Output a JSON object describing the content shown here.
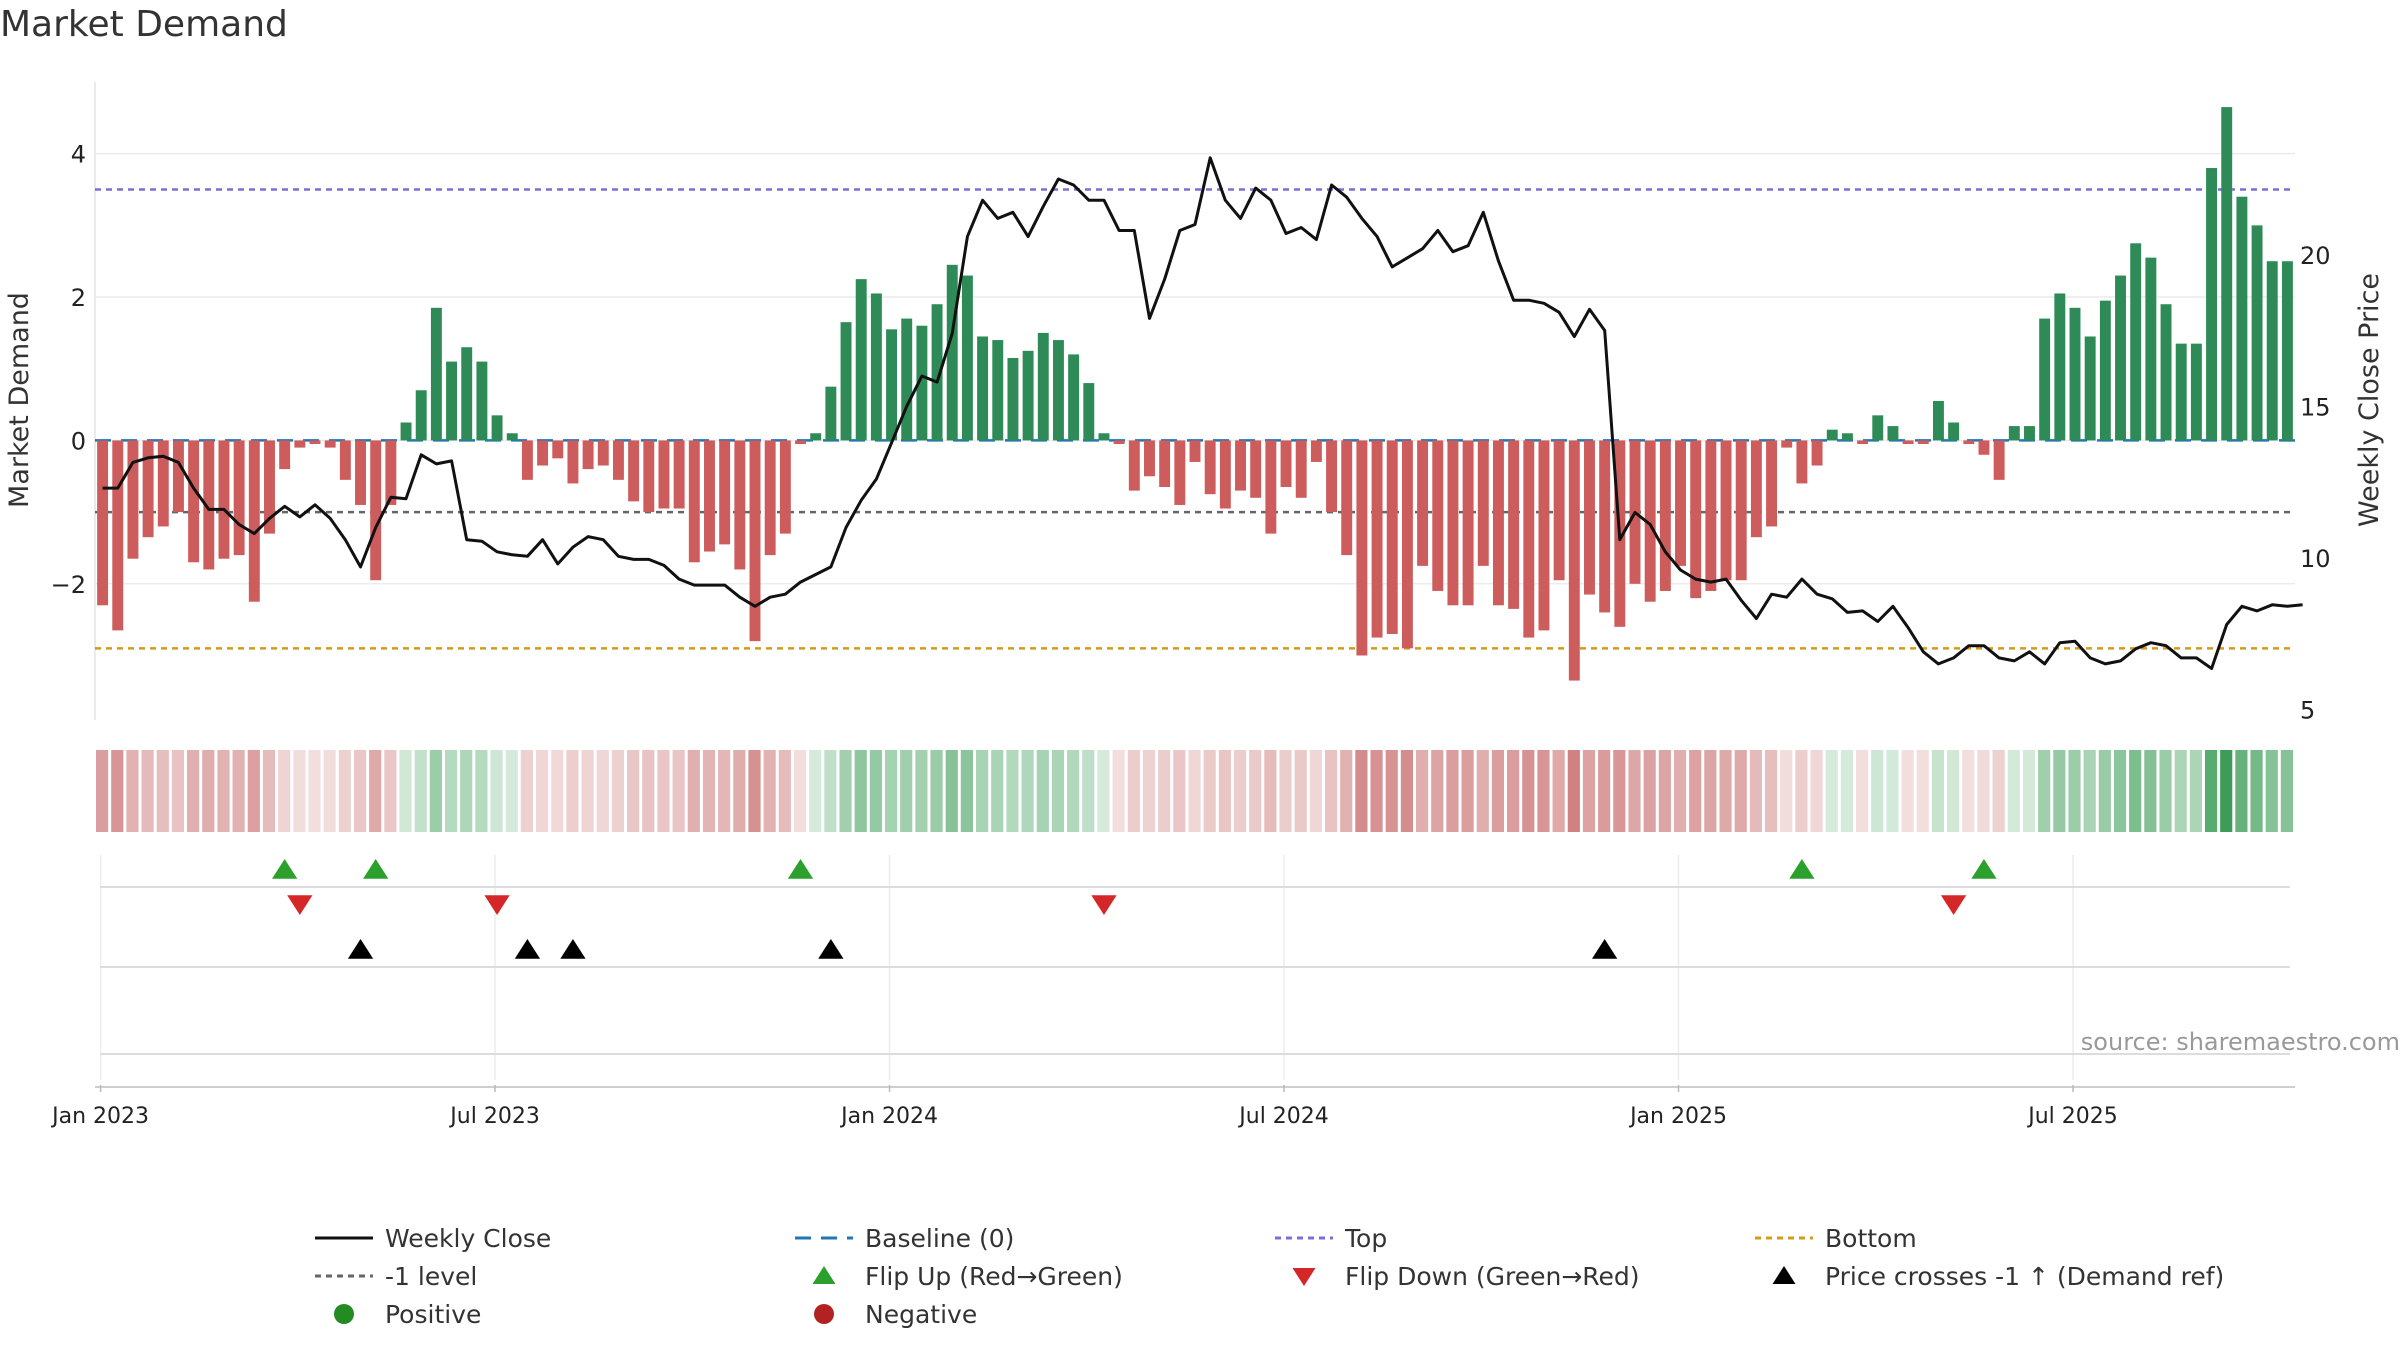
{
  "page": {
    "title": "Market Demand"
  },
  "chart_data": {
    "type": "bar",
    "title": "Market Demand",
    "ylabel": "Market Demand",
    "y2label": "Weekly Close Price",
    "ylim": [
      -3.9,
      5.0
    ],
    "y2lim": [
      4.65,
      25.7
    ],
    "yticks": [
      4,
      2,
      0,
      -2
    ],
    "y2ticks": [
      20,
      15,
      10,
      5
    ],
    "xticks": [
      "Jan 2023",
      "Jul 2023",
      "Jan 2024",
      "Jul 2024",
      "Jan 2025",
      "Jul 2025"
    ],
    "xtick_week_index": [
      0,
      26,
      52,
      78,
      104,
      130
    ],
    "reference_lines": {
      "top": 3.5,
      "bottom": -2.9,
      "minus_one": -1,
      "baseline": 0
    },
    "demand": [
      -2.3,
      -2.65,
      -1.65,
      -1.35,
      -1.2,
      -1.0,
      -1.7,
      -1.8,
      -1.65,
      -1.6,
      -2.25,
      -1.3,
      -0.4,
      -0.1,
      -0.05,
      -0.1,
      -0.55,
      -0.9,
      -1.95,
      -0.9,
      0.25,
      0.7,
      1.85,
      1.1,
      1.3,
      1.1,
      0.35,
      0.1,
      -0.55,
      -0.35,
      -0.25,
      -0.6,
      -0.4,
      -0.35,
      -0.55,
      -0.85,
      -1.0,
      -0.95,
      -0.95,
      -1.7,
      -1.55,
      -1.45,
      -1.8,
      -2.8,
      -1.6,
      -1.3,
      -0.05,
      0.1,
      0.75,
      1.65,
      2.25,
      2.05,
      1.55,
      1.7,
      1.6,
      1.9,
      2.45,
      2.3,
      1.45,
      1.4,
      1.15,
      1.25,
      1.5,
      1.4,
      1.2,
      0.8,
      0.1,
      -0.05,
      -0.7,
      -0.5,
      -0.65,
      -0.9,
      -0.3,
      -0.75,
      -0.95,
      -0.7,
      -0.8,
      -1.3,
      -0.65,
      -0.8,
      -0.3,
      -1.0,
      -1.6,
      -3.0,
      -2.75,
      -2.7,
      -2.9,
      -1.75,
      -2.1,
      -2.3,
      -2.3,
      -1.75,
      -2.3,
      -2.35,
      -2.75,
      -2.65,
      -1.95,
      -3.35,
      -2.15,
      -2.4,
      -2.6,
      -2.0,
      -2.25,
      -2.1,
      -1.75,
      -2.2,
      -2.1,
      -1.95,
      -1.95,
      -1.35,
      -1.2,
      -0.1,
      -0.6,
      -0.35,
      0.15,
      0.1,
      -0.05,
      0.35,
      0.2,
      -0.05,
      -0.05,
      0.55,
      0.25,
      -0.05,
      -0.2,
      -0.55,
      0.2,
      0.2,
      1.7,
      2.05,
      1.85,
      1.45,
      1.95,
      2.3,
      2.75,
      2.55,
      1.9,
      1.35,
      1.35,
      3.8,
      4.65,
      3.4,
      3.0,
      2.5,
      2.5
    ],
    "close": [
      12.3,
      12.3,
      13.15,
      13.3,
      13.35,
      13.15,
      12.3,
      11.6,
      11.6,
      11.1,
      10.8,
      11.3,
      11.7,
      11.35,
      11.75,
      11.3,
      10.6,
      9.7,
      11.0,
      12.0,
      11.95,
      13.4,
      13.1,
      13.2,
      10.6,
      10.55,
      10.2,
      10.1,
      10.05,
      10.6,
      9.8,
      10.35,
      10.7,
      10.6,
      10.05,
      9.95,
      9.95,
      9.75,
      9.3,
      9.1,
      9.1,
      9.1,
      8.7,
      8.4,
      8.7,
      8.8,
      9.2,
      9.45,
      9.7,
      11.0,
      11.9,
      12.6,
      13.8,
      15.0,
      16.0,
      15.8,
      17.4,
      20.6,
      21.8,
      21.2,
      21.4,
      20.6,
      21.6,
      22.5,
      22.3,
      21.8,
      21.8,
      20.8,
      20.8,
      17.9,
      19.2,
      20.8,
      21.0,
      23.2,
      21.8,
      21.2,
      22.2,
      21.8,
      20.7,
      20.9,
      20.5,
      22.3,
      21.9,
      21.2,
      20.6,
      19.6,
      19.9,
      20.2,
      20.8,
      20.1,
      20.3,
      21.4,
      19.8,
      18.5,
      18.5,
      18.4,
      18.1,
      17.3,
      18.2,
      17.5,
      10.6,
      11.5,
      11.1,
      10.2,
      9.6,
      9.3,
      9.2,
      9.3,
      8.6,
      8.0,
      8.8,
      8.7,
      9.3,
      8.8,
      8.65,
      8.2,
      8.25,
      7.9,
      8.4,
      7.7,
      6.9,
      6.5,
      6.7,
      7.1,
      7.1,
      6.7,
      6.6,
      6.9,
      6.5,
      7.2,
      7.25,
      6.7,
      6.5,
      6.6,
      7.0,
      7.2,
      7.1,
      6.7,
      6.7,
      6.35,
      7.8,
      8.4,
      8.25,
      8.45,
      8.4,
      8.45
    ],
    "flip_up_weeks": [
      12,
      18,
      46,
      112,
      124
    ],
    "flip_down_weeks": [
      13,
      26,
      66,
      122
    ],
    "price_cross_weeks": [
      17,
      28,
      31,
      48,
      99
    ],
    "legend": {
      "weekly_close": "Weekly Close",
      "baseline": "Baseline (0)",
      "top": "Top",
      "bottom": "Bottom",
      "minus_one": "-1 level",
      "flip_up": "Flip Up (Red→Green)",
      "flip_down": "Flip Down (Green→Red)",
      "price_cross": "Price crosses -1 ↑ (Demand ref)",
      "positive": "Positive",
      "negative": "Negative"
    },
    "source": "source: sharemaestro.com"
  },
  "colors": {
    "positive": "#2e8b57",
    "negative": "#cd5c5c",
    "line": "#111111",
    "top": "#7b6fd6",
    "bottom": "#d49b1b",
    "baseline": "#1f77b4",
    "minus_one": "#666666",
    "flip_up": "#2ca02c",
    "flip_down": "#d62728",
    "cross": "#000000",
    "positive_dot": "#228b22",
    "negative_dot": "#b22222"
  }
}
